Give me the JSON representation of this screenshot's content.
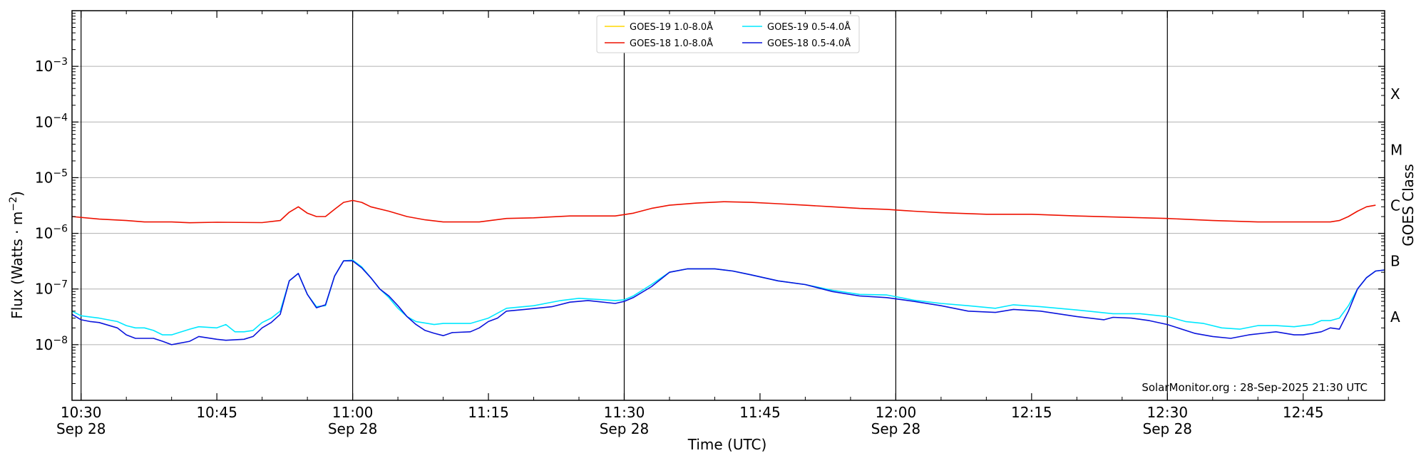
{
  "chart_data": {
    "type": "line",
    "ylabel_main": "Flux (Watts · m",
    "ylabel_sup": "−2",
    "ylabel_close": ")",
    "xlabel": "Time (UTC)",
    "y2label": "GOES Class",
    "credit": "SolarMonitor.org : 28-Sep-2025 21:30 UTC",
    "y_scale": "log",
    "ylim": [
      1e-09,
      0.01
    ],
    "xlim": [
      "10:29",
      "12:54"
    ],
    "grid": "horizontal",
    "legend_position": "top-center",
    "y_ticks": [
      {
        "value": 1e-08,
        "base": "10",
        "exp": "−8"
      },
      {
        "value": 1e-07,
        "base": "10",
        "exp": "−7"
      },
      {
        "value": 1e-06,
        "base": "10",
        "exp": "−6"
      },
      {
        "value": 1e-05,
        "base": "10",
        "exp": "−5"
      },
      {
        "value": 0.0001,
        "base": "10",
        "exp": "−4"
      },
      {
        "value": 0.001,
        "base": "10",
        "exp": "−3"
      }
    ],
    "x_ticks": [
      {
        "time": "10:30",
        "label": "10:30",
        "sublabel": "Sep 28"
      },
      {
        "time": "10:45",
        "label": "10:45",
        "sublabel": ""
      },
      {
        "time": "11:00",
        "label": "11:00",
        "sublabel": "Sep 28"
      },
      {
        "time": "11:15",
        "label": "11:15",
        "sublabel": ""
      },
      {
        "time": "11:30",
        "label": "11:30",
        "sublabel": "Sep 28"
      },
      {
        "time": "11:45",
        "label": "11:45",
        "sublabel": ""
      },
      {
        "time": "12:00",
        "label": "12:00",
        "sublabel": "Sep 28"
      },
      {
        "time": "12:15",
        "label": "12:15",
        "sublabel": ""
      },
      {
        "time": "12:30",
        "label": "12:30",
        "sublabel": "Sep 28"
      },
      {
        "time": "12:45",
        "label": "12:45",
        "sublabel": ""
      }
    ],
    "vlines": [
      "10:30",
      "11:00",
      "11:30",
      "12:00",
      "12:30"
    ],
    "class_labels": [
      {
        "label": "A",
        "value": 3.16e-08
      },
      {
        "label": "B",
        "value": 3.16e-07
      },
      {
        "label": "C",
        "value": 3.16e-06
      },
      {
        "label": "M",
        "value": 3.16e-05
      },
      {
        "label": "X",
        "value": 0.000316
      }
    ],
    "series": [
      {
        "name": "GOES-19 1.0-8.0Å",
        "color": "#ffd700",
        "points": []
      },
      {
        "name": "GOES-18 1.0-8.0Å",
        "color": "#ee1100",
        "points": [
          [
            "10:29",
            2e-06
          ],
          [
            "10:32",
            1.8e-06
          ],
          [
            "10:35",
            1.7e-06
          ],
          [
            "10:37",
            1.6e-06
          ],
          [
            "10:40",
            1.6e-06
          ],
          [
            "10:42",
            1.55e-06
          ],
          [
            "10:45",
            1.58e-06
          ],
          [
            "10:50",
            1.56e-06
          ],
          [
            "10:52",
            1.7e-06
          ],
          [
            "10:53",
            2.4e-06
          ],
          [
            "10:54",
            3e-06
          ],
          [
            "10:55",
            2.3e-06
          ],
          [
            "10:56",
            2e-06
          ],
          [
            "10:57",
            2e-06
          ],
          [
            "10:58",
            2.7e-06
          ],
          [
            "10:59",
            3.6e-06
          ],
          [
            "11:00",
            3.9e-06
          ],
          [
            "11:01",
            3.6e-06
          ],
          [
            "11:02",
            3e-06
          ],
          [
            "11:04",
            2.5e-06
          ],
          [
            "11:06",
            2e-06
          ],
          [
            "11:08",
            1.75e-06
          ],
          [
            "11:10",
            1.6e-06
          ],
          [
            "11:14",
            1.6e-06
          ],
          [
            "11:17",
            1.85e-06
          ],
          [
            "11:20",
            1.9e-06
          ],
          [
            "11:24",
            2.05e-06
          ],
          [
            "11:29",
            2.05e-06
          ],
          [
            "11:31",
            2.3e-06
          ],
          [
            "11:33",
            2.8e-06
          ],
          [
            "11:35",
            3.2e-06
          ],
          [
            "11:38",
            3.5e-06
          ],
          [
            "11:41",
            3.7e-06
          ],
          [
            "11:44",
            3.6e-06
          ],
          [
            "11:47",
            3.4e-06
          ],
          [
            "11:50",
            3.2e-06
          ],
          [
            "11:53",
            3e-06
          ],
          [
            "11:56",
            2.8e-06
          ],
          [
            "11:59",
            2.7e-06
          ],
          [
            "12:02",
            2.5e-06
          ],
          [
            "12:05",
            2.35e-06
          ],
          [
            "12:10",
            2.2e-06
          ],
          [
            "12:15",
            2.2e-06
          ],
          [
            "12:20",
            2.05e-06
          ],
          [
            "12:25",
            1.95e-06
          ],
          [
            "12:30",
            1.85e-06
          ],
          [
            "12:35",
            1.7e-06
          ],
          [
            "12:40",
            1.6e-06
          ],
          [
            "12:45",
            1.6e-06
          ],
          [
            "12:48",
            1.6e-06
          ],
          [
            "12:49",
            1.7e-06
          ],
          [
            "12:50",
            2e-06
          ],
          [
            "12:51",
            2.5e-06
          ],
          [
            "12:52",
            3e-06
          ],
          [
            "12:53",
            3.2e-06
          ]
        ]
      },
      {
        "name": "GOES-19 0.5-4.0Å",
        "color": "#00e8ff",
        "points": [
          [
            "10:29",
            4e-08
          ],
          [
            "10:30",
            3.3e-08
          ],
          [
            "10:32",
            3e-08
          ],
          [
            "10:34",
            2.6e-08
          ],
          [
            "10:35",
            2.2e-08
          ],
          [
            "10:36",
            2e-08
          ],
          [
            "10:37",
            2e-08
          ],
          [
            "10:38",
            1.8e-08
          ],
          [
            "10:39",
            1.5e-08
          ],
          [
            "10:40",
            1.5e-08
          ],
          [
            "10:42",
            1.9e-08
          ],
          [
            "10:43",
            2.1e-08
          ],
          [
            "10:45",
            2e-08
          ],
          [
            "10:46",
            2.3e-08
          ],
          [
            "10:47",
            1.7e-08
          ],
          [
            "10:48",
            1.7e-08
          ],
          [
            "10:49",
            1.8e-08
          ],
          [
            "10:50",
            2.5e-08
          ],
          [
            "10:51",
            3e-08
          ],
          [
            "10:52",
            4e-08
          ],
          [
            "10:53",
            1.4e-07
          ],
          [
            "10:54",
            1.9e-07
          ],
          [
            "10:55",
            8e-08
          ],
          [
            "10:56",
            4.8e-08
          ],
          [
            "10:57",
            5e-08
          ],
          [
            "10:58",
            1.7e-07
          ],
          [
            "10:59",
            3.2e-07
          ],
          [
            "11:00",
            3.3e-07
          ],
          [
            "11:01",
            2.5e-07
          ],
          [
            "11:02",
            1.6e-07
          ],
          [
            "11:03",
            1e-07
          ],
          [
            "11:04",
            7e-08
          ],
          [
            "11:05",
            4.5e-08
          ],
          [
            "11:06",
            3.2e-08
          ],
          [
            "11:07",
            2.6e-08
          ],
          [
            "11:09",
            2.3e-08
          ],
          [
            "11:10",
            2.4e-08
          ],
          [
            "11:13",
            2.4e-08
          ],
          [
            "11:15",
            3e-08
          ],
          [
            "11:17",
            4.5e-08
          ],
          [
            "11:20",
            5e-08
          ],
          [
            "11:23",
            6.2e-08
          ],
          [
            "11:25",
            6.8e-08
          ],
          [
            "11:27",
            6.5e-08
          ],
          [
            "11:29",
            6.2e-08
          ],
          [
            "11:30",
            6.4e-08
          ],
          [
            "11:31",
            7.5e-08
          ],
          [
            "11:33",
            1.2e-07
          ],
          [
            "11:35",
            2e-07
          ],
          [
            "11:37",
            2.3e-07
          ],
          [
            "11:40",
            2.3e-07
          ],
          [
            "11:42",
            2.1e-07
          ],
          [
            "11:44",
            1.8e-07
          ],
          [
            "11:47",
            1.4e-07
          ],
          [
            "11:50",
            1.2e-07
          ],
          [
            "11:53",
            9.5e-08
          ],
          [
            "11:56",
            8e-08
          ],
          [
            "11:59",
            7.8e-08
          ],
          [
            "12:02",
            6.3e-08
          ],
          [
            "12:05",
            5.5e-08
          ],
          [
            "12:08",
            5e-08
          ],
          [
            "12:11",
            4.5e-08
          ],
          [
            "12:13",
            5.2e-08
          ],
          [
            "12:16",
            4.8e-08
          ],
          [
            "12:20",
            4.2e-08
          ],
          [
            "12:24",
            3.6e-08
          ],
          [
            "12:27",
            3.6e-08
          ],
          [
            "12:30",
            3.2e-08
          ],
          [
            "12:32",
            2.6e-08
          ],
          [
            "12:34",
            2.4e-08
          ],
          [
            "12:36",
            2e-08
          ],
          [
            "12:38",
            1.9e-08
          ],
          [
            "12:40",
            2.2e-08
          ],
          [
            "12:42",
            2.2e-08
          ],
          [
            "12:44",
            2.1e-08
          ],
          [
            "12:46",
            2.3e-08
          ],
          [
            "12:47",
            2.7e-08
          ],
          [
            "12:48",
            2.7e-08
          ],
          [
            "12:49",
            3e-08
          ],
          [
            "12:50",
            5e-08
          ],
          [
            "12:51",
            1e-07
          ],
          [
            "12:52",
            1.6e-07
          ],
          [
            "12:53",
            2.1e-07
          ],
          [
            "12:54",
            2.2e-07
          ]
        ]
      },
      {
        "name": "GOES-18 0.5-4.0Å",
        "color": "#0a14dc",
        "points": [
          [
            "10:29",
            3.5e-08
          ],
          [
            "10:30",
            2.8e-08
          ],
          [
            "10:31",
            2.6e-08
          ],
          [
            "10:32",
            2.5e-08
          ],
          [
            "10:34",
            2e-08
          ],
          [
            "10:35",
            1.5e-08
          ],
          [
            "10:36",
            1.3e-08
          ],
          [
            "10:38",
            1.3e-08
          ],
          [
            "10:39",
            1.15e-08
          ],
          [
            "10:40",
            1e-08
          ],
          [
            "10:42",
            1.15e-08
          ],
          [
            "10:43",
            1.4e-08
          ],
          [
            "10:45",
            1.25e-08
          ],
          [
            "10:46",
            1.2e-08
          ],
          [
            "10:48",
            1.25e-08
          ],
          [
            "10:49",
            1.4e-08
          ],
          [
            "10:50",
            2e-08
          ],
          [
            "10:51",
            2.5e-08
          ],
          [
            "10:52",
            3.5e-08
          ],
          [
            "10:53",
            1.4e-07
          ],
          [
            "10:54",
            1.9e-07
          ],
          [
            "10:55",
            8e-08
          ],
          [
            "10:56",
            4.6e-08
          ],
          [
            "10:57",
            5.2e-08
          ],
          [
            "10:58",
            1.7e-07
          ],
          [
            "10:59",
            3.2e-07
          ],
          [
            "11:00",
            3.2e-07
          ],
          [
            "11:01",
            2.4e-07
          ],
          [
            "11:02",
            1.6e-07
          ],
          [
            "11:03",
            1e-07
          ],
          [
            "11:04",
            7.5e-08
          ],
          [
            "11:05",
            5e-08
          ],
          [
            "11:06",
            3.2e-08
          ],
          [
            "11:07",
            2.3e-08
          ],
          [
            "11:08",
            1.8e-08
          ],
          [
            "11:09",
            1.6e-08
          ],
          [
            "11:10",
            1.45e-08
          ],
          [
            "11:11",
            1.65e-08
          ],
          [
            "11:13",
            1.7e-08
          ],
          [
            "11:14",
            2e-08
          ],
          [
            "11:15",
            2.6e-08
          ],
          [
            "11:16",
            3e-08
          ],
          [
            "11:17",
            4e-08
          ],
          [
            "11:19",
            4.3e-08
          ],
          [
            "11:22",
            4.8e-08
          ],
          [
            "11:24",
            5.8e-08
          ],
          [
            "11:26",
            6.2e-08
          ],
          [
            "11:29",
            5.5e-08
          ],
          [
            "11:30",
            6e-08
          ],
          [
            "11:31",
            7e-08
          ],
          [
            "11:33",
            1.1e-07
          ],
          [
            "11:35",
            2e-07
          ],
          [
            "11:37",
            2.3e-07
          ],
          [
            "11:40",
            2.3e-07
          ],
          [
            "11:42",
            2.1e-07
          ],
          [
            "11:44",
            1.8e-07
          ],
          [
            "11:47",
            1.4e-07
          ],
          [
            "11:50",
            1.2e-07
          ],
          [
            "11:53",
            9e-08
          ],
          [
            "11:56",
            7.5e-08
          ],
          [
            "11:59",
            7e-08
          ],
          [
            "12:02",
            6e-08
          ],
          [
            "12:05",
            5e-08
          ],
          [
            "12:08",
            4e-08
          ],
          [
            "12:11",
            3.8e-08
          ],
          [
            "12:13",
            4.3e-08
          ],
          [
            "12:16",
            4e-08
          ],
          [
            "12:20",
            3.2e-08
          ],
          [
            "12:23",
            2.8e-08
          ],
          [
            "12:24",
            3.1e-08
          ],
          [
            "12:26",
            3e-08
          ],
          [
            "12:28",
            2.7e-08
          ],
          [
            "12:30",
            2.3e-08
          ],
          [
            "12:33",
            1.6e-08
          ],
          [
            "12:35",
            1.4e-08
          ],
          [
            "12:37",
            1.3e-08
          ],
          [
            "12:39",
            1.5e-08
          ],
          [
            "12:42",
            1.7e-08
          ],
          [
            "12:44",
            1.5e-08
          ],
          [
            "12:45",
            1.5e-08
          ],
          [
            "12:47",
            1.7e-08
          ],
          [
            "12:48",
            2e-08
          ],
          [
            "12:49",
            1.9e-08
          ],
          [
            "12:50",
            4e-08
          ],
          [
            "12:51",
            1e-07
          ],
          [
            "12:52",
            1.6e-07
          ],
          [
            "12:53",
            2.1e-07
          ],
          [
            "12:54",
            2.2e-07
          ]
        ]
      }
    ]
  }
}
